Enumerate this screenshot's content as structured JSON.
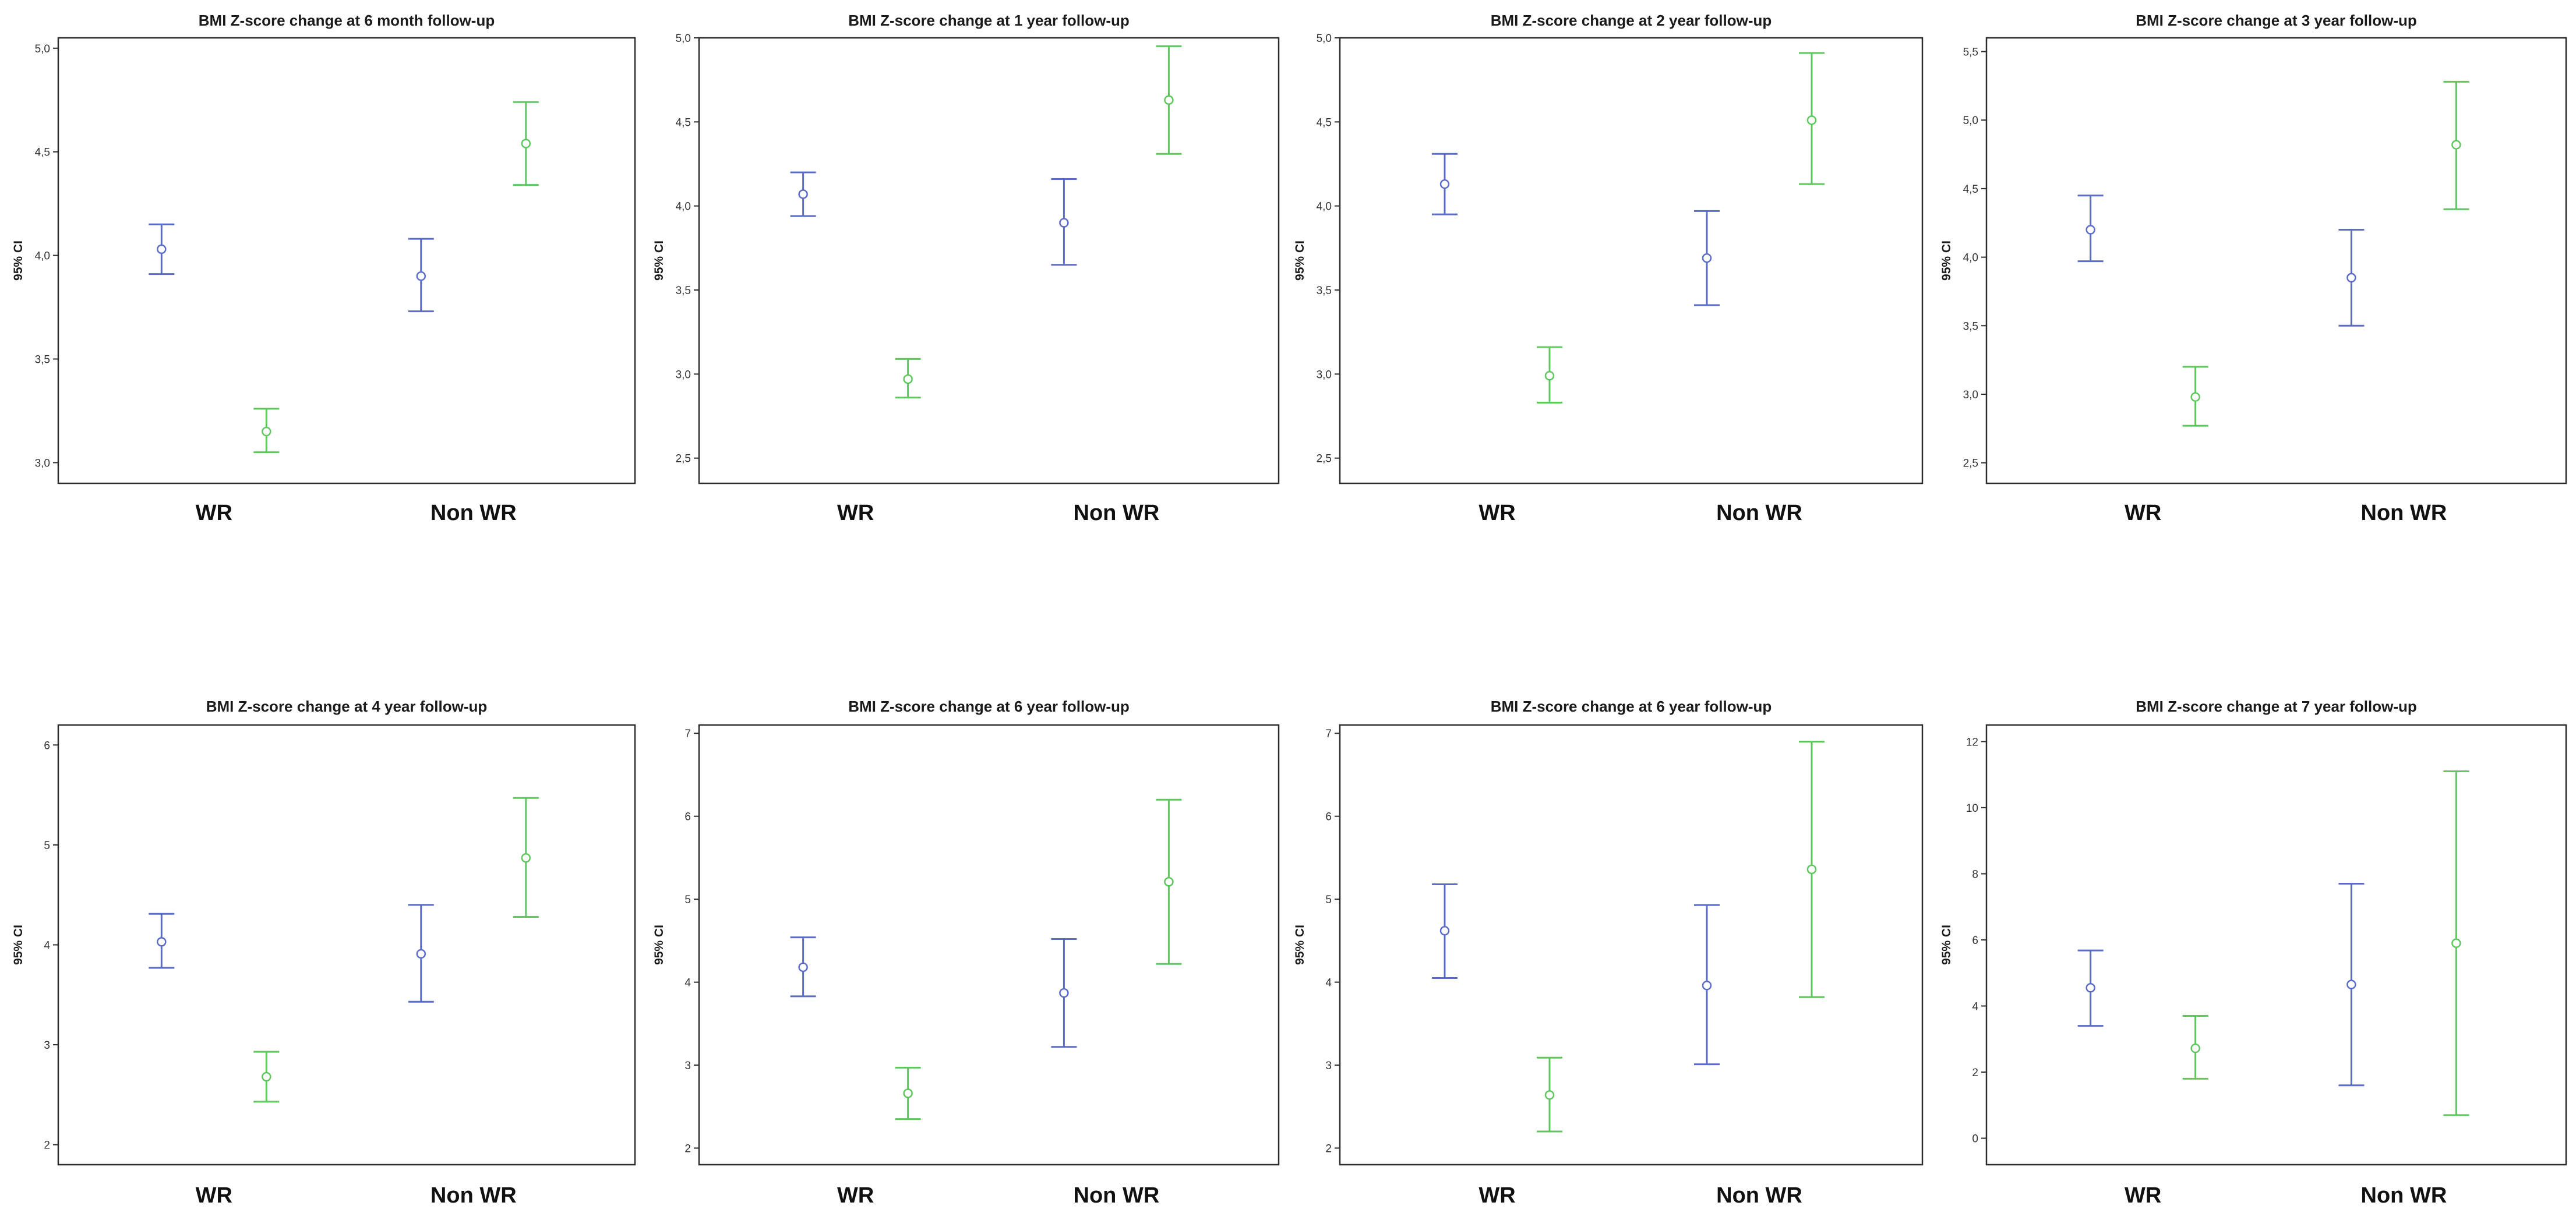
{
  "colors": {
    "wr": "#5b6cc8",
    "nonwr": "#5cc85c",
    "frame": "#2b2b2b"
  },
  "chart_data": [
    {
      "type": "errorbar",
      "title": "BMI Z-score change at 6 month follow-up",
      "ylabel": "95% CI",
      "ylim": [
        2.9,
        5.05
      ],
      "yticks": [
        3.0,
        3.5,
        4.0,
        4.5,
        5.0
      ],
      "tick_labels": [
        "3,0",
        "3,5",
        "4,0",
        "4,5",
        "5,0"
      ],
      "categories": [
        "WR",
        "Non WR"
      ],
      "series": [
        {
          "name": "blue",
          "color": "wr",
          "mean": [
            4.03,
            3.9
          ],
          "lower": [
            3.91,
            3.73
          ],
          "upper": [
            4.15,
            4.08
          ]
        },
        {
          "name": "green",
          "color": "nonwr",
          "mean": [
            3.15,
            4.54
          ],
          "lower": [
            3.05,
            4.34
          ],
          "upper": [
            3.26,
            4.74
          ]
        }
      ]
    },
    {
      "type": "errorbar",
      "title": "BMI Z-score change at 1 year follow-up",
      "ylabel": "95% CI",
      "ylim": [
        2.35,
        5.0
      ],
      "yticks": [
        2.5,
        3.0,
        3.5,
        4.0,
        4.5,
        5.0
      ],
      "tick_labels": [
        "2,5",
        "3,0",
        "3,5",
        "4,0",
        "4,5",
        "5,0"
      ],
      "categories": [
        "WR",
        "Non WR"
      ],
      "series": [
        {
          "name": "blue",
          "color": "wr",
          "mean": [
            4.07,
            3.9
          ],
          "lower": [
            3.94,
            3.65
          ],
          "upper": [
            4.2,
            4.16
          ]
        },
        {
          "name": "green",
          "color": "nonwr",
          "mean": [
            2.97,
            4.63
          ],
          "lower": [
            2.86,
            4.31
          ],
          "upper": [
            3.09,
            4.95
          ]
        }
      ]
    },
    {
      "type": "errorbar",
      "title": "BMI Z-score change at 2 year follow-up",
      "ylabel": "95% CI",
      "ylim": [
        2.35,
        5.0
      ],
      "yticks": [
        2.5,
        3.0,
        3.5,
        4.0,
        4.5,
        5.0
      ],
      "tick_labels": [
        "2,5",
        "3,0",
        "3,5",
        "4,0",
        "4,5",
        "5,0"
      ],
      "categories": [
        "WR",
        "Non WR"
      ],
      "series": [
        {
          "name": "blue",
          "color": "wr",
          "mean": [
            4.13,
            3.69
          ],
          "lower": [
            3.95,
            3.41
          ],
          "upper": [
            4.31,
            3.97
          ]
        },
        {
          "name": "green",
          "color": "nonwr",
          "mean": [
            2.99,
            4.51
          ],
          "lower": [
            2.83,
            4.13
          ],
          "upper": [
            3.16,
            4.91
          ]
        }
      ]
    },
    {
      "type": "errorbar",
      "title": "BMI Z-score change at 3 year follow-up",
      "ylabel": "95% CI",
      "ylim": [
        2.35,
        5.6
      ],
      "yticks": [
        2.5,
        3.0,
        3.5,
        4.0,
        4.5,
        5.0,
        5.5
      ],
      "tick_labels": [
        "2,5",
        "3,0",
        "3,5",
        "4,0",
        "4,5",
        "5,0",
        "5,5"
      ],
      "categories": [
        "WR",
        "Non WR"
      ],
      "series": [
        {
          "name": "blue",
          "color": "wr",
          "mean": [
            4.2,
            3.85
          ],
          "lower": [
            3.97,
            3.5
          ],
          "upper": [
            4.45,
            4.2
          ]
        },
        {
          "name": "green",
          "color": "nonwr",
          "mean": [
            2.98,
            4.82
          ],
          "lower": [
            2.77,
            4.35
          ],
          "upper": [
            3.2,
            5.28
          ]
        }
      ]
    },
    {
      "type": "errorbar",
      "title": "BMI Z-score change at 4 year follow-up",
      "ylabel": "95% CI",
      "ylim": [
        1.8,
        6.2
      ],
      "yticks": [
        2,
        3,
        4,
        5,
        6
      ],
      "tick_labels": [
        "2",
        "3",
        "4",
        "5",
        "6"
      ],
      "categories": [
        "WR",
        "Non WR"
      ],
      "series": [
        {
          "name": "blue",
          "color": "wr",
          "mean": [
            4.03,
            3.91
          ],
          "lower": [
            3.77,
            3.43
          ],
          "upper": [
            4.31,
            4.4
          ]
        },
        {
          "name": "green",
          "color": "nonwr",
          "mean": [
            2.68,
            4.87
          ],
          "lower": [
            2.43,
            4.28
          ],
          "upper": [
            2.93,
            5.47
          ]
        }
      ]
    },
    {
      "type": "errorbar",
      "title": "BMI Z-score change at 6 year follow-up",
      "ylabel": "95% CI",
      "ylim": [
        1.8,
        7.1
      ],
      "yticks": [
        2,
        3,
        4,
        5,
        6,
        7
      ],
      "tick_labels": [
        "2",
        "3",
        "4",
        "5",
        "6",
        "7"
      ],
      "categories": [
        "WR",
        "Non WR"
      ],
      "series": [
        {
          "name": "blue",
          "color": "wr",
          "mean": [
            4.18,
            3.87
          ],
          "lower": [
            3.83,
            3.22
          ],
          "upper": [
            4.54,
            4.52
          ]
        },
        {
          "name": "green",
          "color": "nonwr",
          "mean": [
            2.66,
            5.21
          ],
          "lower": [
            2.35,
            4.22
          ],
          "upper": [
            2.97,
            6.2
          ]
        }
      ]
    },
    {
      "type": "errorbar",
      "title": "BMI Z-score change at 6 year follow-up",
      "ylabel": "95% CI",
      "ylim": [
        1.8,
        7.1
      ],
      "yticks": [
        2,
        3,
        4,
        5,
        6,
        7
      ],
      "tick_labels": [
        "2",
        "3",
        "4",
        "5",
        "6",
        "7"
      ],
      "categories": [
        "WR",
        "Non WR"
      ],
      "series": [
        {
          "name": "blue",
          "color": "wr",
          "mean": [
            4.62,
            3.96
          ],
          "lower": [
            4.05,
            3.01
          ],
          "upper": [
            5.18,
            4.93
          ]
        },
        {
          "name": "green",
          "color": "nonwr",
          "mean": [
            2.64,
            5.36
          ],
          "lower": [
            2.2,
            3.82
          ],
          "upper": [
            3.09,
            6.9
          ]
        }
      ]
    },
    {
      "type": "errorbar",
      "title": "BMI Z-score change at 7 year follow-up",
      "ylabel": "95% CI",
      "ylim": [
        -0.8,
        12.5
      ],
      "yticks": [
        0,
        2,
        4,
        6,
        8,
        10,
        12
      ],
      "tick_labels": [
        "0",
        "2",
        "4",
        "6",
        "8",
        "10",
        "12"
      ],
      "categories": [
        "WR",
        "Non WR"
      ],
      "series": [
        {
          "name": "blue",
          "color": "wr",
          "mean": [
            4.55,
            4.65
          ],
          "lower": [
            3.4,
            1.6
          ],
          "upper": [
            5.68,
            7.7
          ]
        },
        {
          "name": "green",
          "color": "nonwr",
          "mean": [
            2.72,
            5.9
          ],
          "lower": [
            1.8,
            0.7
          ],
          "upper": [
            3.7,
            11.1
          ]
        }
      ]
    }
  ]
}
